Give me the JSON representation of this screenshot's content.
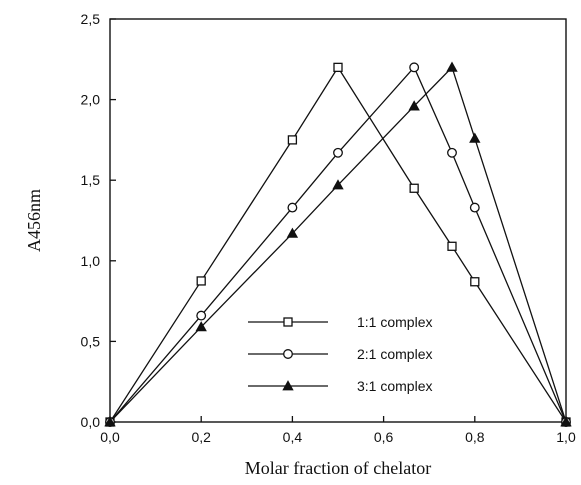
{
  "chart_data": {
    "type": "line",
    "title": "",
    "xlabel": "Molar fraction of chelator",
    "ylabel": "A456nm",
    "xlim": [
      0,
      1
    ],
    "ylim": [
      0,
      2.5
    ],
    "x_ticks": [
      0,
      0.2,
      0.4,
      0.6,
      0.8,
      1.0
    ],
    "x_tick_labels": [
      "0,0",
      "0,2",
      "0,4",
      "0,6",
      "0,8",
      "1,0"
    ],
    "y_ticks": [
      0,
      0.5,
      1.0,
      1.5,
      2.0,
      2.5
    ],
    "y_tick_labels": [
      "0,0",
      "0,5",
      "1,0",
      "1,5",
      "2,0",
      "2,5"
    ],
    "grid": false,
    "legend_position": "bottom-center",
    "series": [
      {
        "name": "1:1 complex",
        "marker": "open-square",
        "x": [
          0,
          0.2,
          0.4,
          0.5,
          0.667,
          0.75,
          0.8,
          1.0
        ],
        "y": [
          0,
          0.875,
          1.75,
          2.2,
          1.45,
          1.09,
          0.87,
          0
        ]
      },
      {
        "name": "2:1 complex",
        "marker": "open-circle",
        "x": [
          0,
          0.2,
          0.4,
          0.5,
          0.667,
          0.75,
          0.8,
          1.0
        ],
        "y": [
          0,
          0.66,
          1.33,
          1.67,
          2.2,
          1.67,
          1.33,
          0
        ]
      },
      {
        "name": "3:1 complex",
        "marker": "filled-triangle",
        "x": [
          0,
          0.2,
          0.4,
          0.5,
          0.667,
          0.75,
          0.8,
          1.0
        ],
        "y": [
          0,
          0.59,
          1.17,
          1.47,
          1.96,
          2.2,
          1.76,
          0
        ]
      }
    ]
  }
}
